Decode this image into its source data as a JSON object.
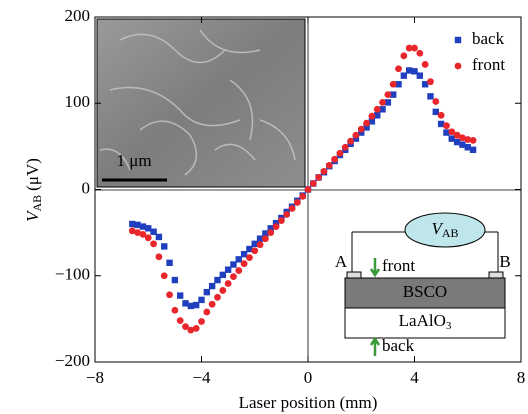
{
  "chart_data": {
    "type": "scatter",
    "xlabel": "Laser position (mm)",
    "ylabel": {
      "symbol": "V",
      "subscript": "AB",
      "unit": "(μV)"
    },
    "xlim": [
      -8,
      8
    ],
    "ylim": [
      -200,
      200
    ],
    "xticks": [
      {
        "value": -8,
        "label": "−8"
      },
      {
        "value": -4,
        "label": "−4"
      },
      0,
      4,
      8
    ],
    "yticks": [
      {
        "value": -200,
        "label": "−200"
      },
      {
        "value": -100,
        "label": "−100"
      },
      0,
      100,
      200
    ],
    "grid": false,
    "legend": "top-right",
    "x": [
      -6.6,
      -6.4,
      -6.2,
      -6.0,
      -5.8,
      -5.6,
      -5.4,
      -5.2,
      -5.0,
      -4.8,
      -4.6,
      -4.4,
      -4.2,
      -4.0,
      -3.8,
      -3.6,
      -3.4,
      -3.2,
      -3.0,
      -2.8,
      -2.6,
      -2.4,
      -2.2,
      -2.0,
      -1.8,
      -1.6,
      -1.4,
      -1.2,
      -1.0,
      -0.8,
      -0.6,
      -0.4,
      -0.2,
      0,
      0.2,
      0.4,
      0.6,
      0.8,
      1.0,
      1.2,
      1.4,
      1.6,
      1.8,
      2.0,
      2.2,
      2.4,
      2.6,
      2.8,
      3.0,
      3.2,
      3.4,
      3.6,
      3.8,
      4.0,
      4.2,
      4.4,
      4.6,
      4.8,
      5.0,
      5.2,
      5.4,
      5.6,
      5.8,
      6.0,
      6.2
    ],
    "series": [
      {
        "name": "back",
        "color": "#1f3fbf",
        "marker": "square",
        "values": [
          -40,
          -41,
          -43,
          -45,
          -49,
          -55,
          -66,
          -85,
          -105,
          -123,
          -132,
          -135,
          -134,
          -128,
          -119,
          -112,
          -105,
          -99,
          -93,
          -87,
          -81,
          -75,
          -69,
          -63,
          -57,
          -51,
          -45,
          -39,
          -33,
          -26,
          -20,
          -13,
          -7,
          0,
          7,
          14,
          20,
          27,
          33,
          40,
          46,
          53,
          59,
          66,
          72,
          79,
          86,
          93,
          101,
          110,
          122,
          132,
          138,
          137,
          132,
          122,
          108,
          90,
          76,
          66,
          59,
          55,
          52,
          49,
          46
        ]
      },
      {
        "name": "front",
        "color": "#e8262b",
        "marker": "circle",
        "values": [
          -48,
          -50,
          -52,
          -56,
          -63,
          -78,
          -100,
          -122,
          -140,
          -152,
          -159,
          -163,
          -161,
          -153,
          -142,
          -133,
          -125,
          -117,
          -109,
          -101,
          -94,
          -86,
          -79,
          -71,
          -64,
          -57,
          -50,
          -43,
          -36,
          -29,
          -22,
          -15,
          -8,
          0,
          7,
          14,
          21,
          28,
          35,
          42,
          49,
          56,
          63,
          70,
          77,
          85,
          93,
          101,
          110,
          122,
          140,
          155,
          164,
          164,
          158,
          145,
          125,
          102,
          86,
          74,
          67,
          63,
          60,
          58,
          57
        ]
      }
    ],
    "inset": {
      "scale_bar": "1 μm"
    },
    "schematic": {
      "meter": {
        "symbol": "V",
        "subscript": "AB"
      },
      "left_contact": "A",
      "right_contact": "B",
      "front": "front",
      "back": "back",
      "top_layer": "BSCO",
      "substrate": {
        "name": "LaAlO",
        "subscript": "3"
      }
    }
  }
}
